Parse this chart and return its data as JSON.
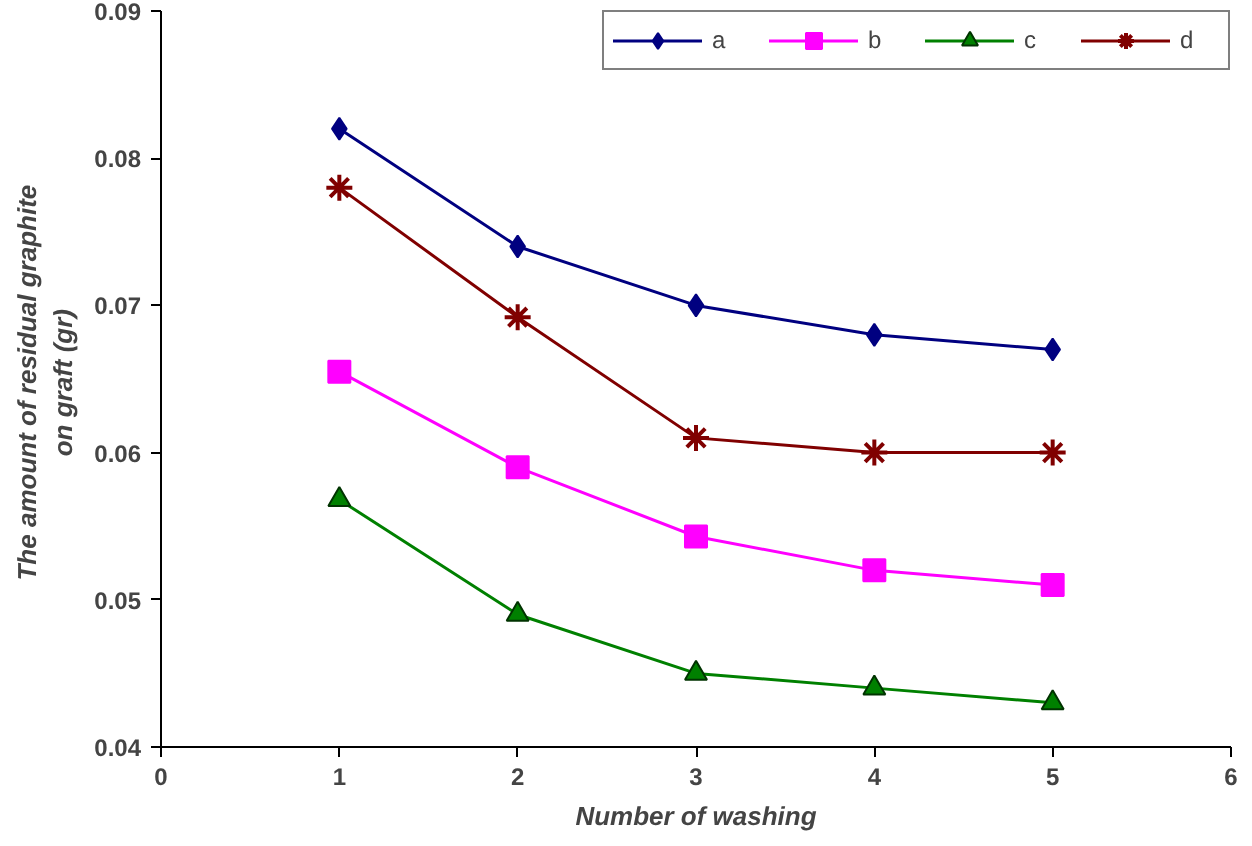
{
  "chart_data": {
    "type": "line",
    "xlabel": "Number of washing",
    "ylabel": "The amount of residual  graphite\non graft  (gr)",
    "x": [
      1,
      2,
      3,
      4,
      5
    ],
    "xlim": [
      0,
      6
    ],
    "xticks": [
      0,
      1,
      2,
      3,
      4,
      5,
      6
    ],
    "ylim": [
      0.04,
      0.09
    ],
    "yticks": [
      0.04,
      0.05,
      0.06,
      0.07,
      0.08,
      0.09
    ],
    "grid": false,
    "legend": "top right",
    "line_style": "solid",
    "series": [
      {
        "name": "a",
        "color": "#000080",
        "marker": "diamond",
        "values": [
          0.082,
          0.074,
          0.07,
          0.068,
          0.067
        ]
      },
      {
        "name": "b",
        "color": "#ff00ff",
        "marker": "square",
        "values": [
          0.0655,
          0.059,
          0.0543,
          0.052,
          0.051
        ]
      },
      {
        "name": "c",
        "color": "#008000",
        "marker": "triangle",
        "values": [
          0.0568,
          0.049,
          0.045,
          0.044,
          0.043
        ]
      },
      {
        "name": "d",
        "color": "#800000",
        "marker": "cross",
        "values": [
          0.078,
          0.0692,
          0.061,
          0.06,
          0.06
        ]
      }
    ]
  }
}
